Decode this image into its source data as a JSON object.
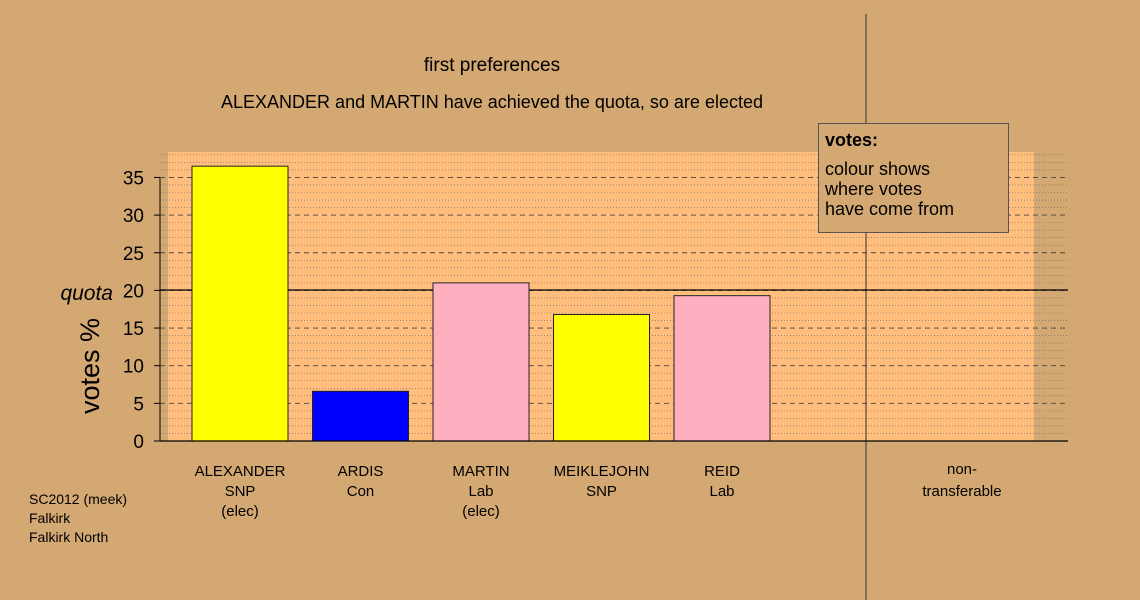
{
  "title": "first preferences",
  "subtitle": "ALEXANDER and MARTIN have achieved the quota, so are elected",
  "legend": {
    "title": "votes:",
    "lines": [
      "colour shows",
      "where votes",
      "have come from"
    ]
  },
  "source": {
    "line1": "SC2012 (meek)",
    "line2": "Falkirk",
    "line3": "Falkirk North"
  },
  "colors": {
    "background": "#D4A873",
    "plot_area": "#FFBE7D",
    "SNP": "#FFFF00",
    "Con": "#0000FF",
    "Lab": "#FFB0C0"
  },
  "chart_data": {
    "type": "bar",
    "ylabel": "votes %",
    "quota_label": "quota",
    "quota": 20,
    "ylim": [
      0,
      38
    ],
    "yticks": [
      0,
      5,
      10,
      15,
      20,
      25,
      30,
      35
    ],
    "candidates": [
      {
        "name": "ALEXANDER",
        "party": "SNP",
        "status": "(elec)",
        "value": 36.5,
        "color": "#FFFF00"
      },
      {
        "name": "ARDIS",
        "party": "Con",
        "status": "",
        "value": 6.6,
        "color": "#0000FF"
      },
      {
        "name": "MARTIN",
        "party": "Lab",
        "status": "(elec)",
        "value": 21.0,
        "color": "#FFB0C0"
      },
      {
        "name": "MEIKLEJOHN",
        "party": "SNP",
        "status": "",
        "value": 16.8,
        "color": "#FFFF00"
      },
      {
        "name": "REID",
        "party": "Lab",
        "status": "",
        "value": 19.3,
        "color": "#FFB0C0"
      }
    ],
    "nontransferable": {
      "label1": "non-",
      "label2": "transferable",
      "value": 0
    }
  }
}
